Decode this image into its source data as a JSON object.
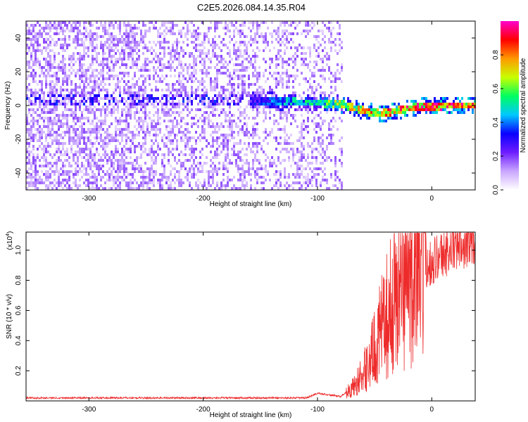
{
  "title": "C2E5.2026.084.14.35.R04",
  "chart_data": [
    {
      "type": "heatmap",
      "name": "spectrogram",
      "xlabel": "Height of straight line (km)",
      "ylabel": "Frequency (Hz)",
      "xlim": [
        -355,
        38
      ],
      "ylim": [
        -50,
        50
      ],
      "xticks": [
        -300,
        -200,
        -100,
        0
      ],
      "xtick_labels": [
        "-300",
        "-200",
        "-100",
        "0"
      ],
      "yticks": [
        -40,
        -20,
        0,
        20,
        40
      ],
      "ytick_labels": [
        "-40",
        "-20",
        "0",
        "20",
        "40"
      ],
      "noise_cutoff_x": -77,
      "signal_track": [
        {
          "x": -150,
          "y": 3.0
        },
        {
          "x": -120,
          "y": 2.0
        },
        {
          "x": -100,
          "y": 1.5
        },
        {
          "x": -80,
          "y": 1.0
        },
        {
          "x": -60,
          "y": -3.0
        },
        {
          "x": -45,
          "y": -5.0
        },
        {
          "x": -30,
          "y": -3.0
        },
        {
          "x": -10,
          "y": -0.5
        },
        {
          "x": 38,
          "y": 0.0
        }
      ],
      "colorbar": {
        "label": "Normalized spectral amplitude",
        "range": [
          0,
          1
        ],
        "ticks": [
          0.0,
          0.2,
          0.4,
          0.6,
          0.8
        ],
        "tick_labels": [
          "0.0",
          "0.2",
          "0.4",
          "0.6",
          "0.8"
        ],
        "colors": [
          "#ffffff",
          "#c9a6ff",
          "#6f1dff",
          "#0a00ff",
          "#00c8ff",
          "#00ff60",
          "#c8ff00",
          "#ff9900",
          "#ff0000",
          "#ff00cc"
        ]
      }
    },
    {
      "type": "line",
      "name": "snr",
      "xlabel": "Height of straight line (km)",
      "ylabel": "SNR (10 * v/v)",
      "scale_label": "(x10",
      "scale_exponent": "4",
      "scale_close": ")",
      "xlim": [
        -355,
        38
      ],
      "ylim": [
        0,
        1.12
      ],
      "xticks": [
        -300,
        -200,
        -100,
        0
      ],
      "xtick_labels": [
        "-300",
        "-200",
        "-100",
        "0"
      ],
      "yticks": [
        0.2,
        0.4,
        0.6,
        0.8,
        1.0
      ],
      "ytick_labels": [
        "0.2",
        "0.4",
        "0.6",
        "0.8",
        "1.0"
      ],
      "color": "#ee2b2b",
      "envelope": [
        {
          "x": -355,
          "y": 0.02
        },
        {
          "x": -110,
          "y": 0.02
        },
        {
          "x": -100,
          "y": 0.05
        },
        {
          "x": -80,
          "y": 0.03
        },
        {
          "x": -70,
          "y": 0.08
        },
        {
          "x": -60,
          "y": 0.18
        },
        {
          "x": -50,
          "y": 0.35
        },
        {
          "x": -40,
          "y": 0.55
        },
        {
          "x": -30,
          "y": 0.72
        },
        {
          "x": -20,
          "y": 0.82
        },
        {
          "x": -10,
          "y": 0.88
        },
        {
          "x": 0,
          "y": 0.93
        },
        {
          "x": 10,
          "y": 0.98
        },
        {
          "x": 20,
          "y": 1.03
        },
        {
          "x": 30,
          "y": 1.07
        },
        {
          "x": 38,
          "y": 1.08
        }
      ]
    }
  ]
}
